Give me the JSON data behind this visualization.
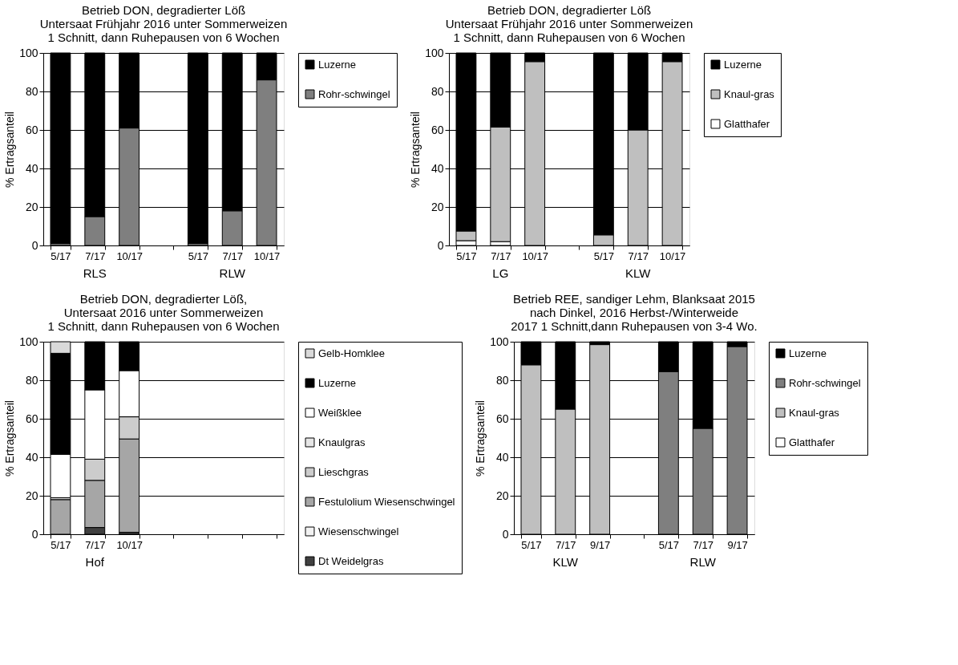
{
  "chart_data": [
    {
      "type": "bar",
      "stacked": true,
      "title": "Betrieb DON, degradierter Löß\nUntersaat Frühjahr 2016 unter Sommerweizen\n1 Schnitt, dann Ruhepausen von 6 Wochen",
      "ylabel": "% Ertragsanteil",
      "categories": [
        "5/17",
        "7/17",
        "10/17",
        null,
        "5/17",
        "7/17",
        "10/17"
      ],
      "ylim": [
        0,
        100
      ],
      "yticks": [
        0,
        20,
        40,
        60,
        80,
        100
      ],
      "grid": "y",
      "legend": "right",
      "annotations": [
        "RLS",
        "RLW"
      ],
      "series": [
        {
          "name": "Rohr-schwingel",
          "color": "#7f7f7f",
          "values": [
            1,
            15,
            61,
            null,
            1,
            18,
            86
          ]
        },
        {
          "name": "Luzerne",
          "color": "#000000",
          "values": [
            99,
            85,
            39,
            null,
            99,
            82,
            14
          ]
        }
      ]
    },
    {
      "type": "bar",
      "stacked": true,
      "title": "Betrieb DON, degradierter Löß\nUntersaat Frühjahr 2016 unter Sommerweizen\n1 Schnitt, dann Ruhepausen von 6 Wochen",
      "ylabel": "% Ertragsanteil",
      "categories": [
        "5/17",
        "7/17",
        "10/17",
        null,
        "5/17",
        "7/17",
        "10/17"
      ],
      "ylim": [
        0,
        100
      ],
      "yticks": [
        0,
        20,
        40,
        60,
        80,
        100
      ],
      "grid": "y",
      "legend": "right",
      "annotations": [
        "LG",
        "KLW"
      ],
      "series": [
        {
          "name": "Glatthafer",
          "color": "#ffffff",
          "values": [
            2.5,
            2,
            0,
            null,
            0,
            0,
            0
          ]
        },
        {
          "name": "Knaul-gras",
          "color": "#bfbfbf",
          "values": [
            5,
            59.5,
            95.5,
            null,
            5.5,
            60,
            95.5
          ]
        },
        {
          "name": "Luzerne",
          "color": "#000000",
          "values": [
            92.5,
            38.5,
            4.5,
            null,
            94.5,
            40,
            4.5
          ]
        }
      ]
    },
    {
      "type": "bar",
      "stacked": true,
      "title": "Betrieb DON, degradierter Löß,\nUntersaat 2016 unter Sommerweizen\n1 Schnitt, dann Ruhepausen von 6 Wochen",
      "ylabel": "% Ertragsanteil",
      "categories": [
        "5/17",
        "7/17",
        "10/17",
        null,
        null,
        null,
        null
      ],
      "ylim": [
        0,
        100
      ],
      "yticks": [
        0,
        20,
        40,
        60,
        80,
        100
      ],
      "grid": "y",
      "legend": "right",
      "annotations": [
        "Hof"
      ],
      "series": [
        {
          "name": "Dt Weidelgras",
          "color": "#404040",
          "values": [
            0,
            3.5,
            1,
            null,
            null,
            null,
            null
          ]
        },
        {
          "name": "Wiesenschwingel",
          "color": "#f2f2f2",
          "values": [
            0,
            0,
            0,
            null,
            null,
            null,
            null
          ]
        },
        {
          "name": "Festulolium Wiesenschwingel",
          "color": "#a6a6a6",
          "values": [
            18,
            24.5,
            48.5,
            null,
            null,
            null,
            null
          ]
        },
        {
          "name": "Lieschgras",
          "color": "#cccccc",
          "values": [
            1,
            11,
            11.5,
            null,
            null,
            null,
            null
          ]
        },
        {
          "name": "Knaulgras",
          "color": "#e6e6e6",
          "values": [
            0,
            0,
            0,
            null,
            null,
            null,
            null
          ]
        },
        {
          "name": "Weißklee",
          "color": "#ffffff",
          "values": [
            22.5,
            36,
            24,
            null,
            null,
            null,
            null
          ]
        },
        {
          "name": "Luzerne",
          "color": "#000000",
          "values": [
            52.5,
            25,
            15,
            null,
            null,
            null,
            null
          ]
        },
        {
          "name": "Gelb-Homklee",
          "color": "#d9d9d9",
          "values": [
            6,
            0,
            0,
            null,
            null,
            null,
            null
          ]
        }
      ]
    },
    {
      "type": "bar",
      "stacked": true,
      "title": "Betrieb REE, sandiger Lehm, Blanksaat 2015\nnach Dinkel, 2016 Herbst-/Winterweide\n2017 1 Schnitt,dann Ruhepausen von 3-4 Wo.",
      "ylabel": "% Ertragsanteil",
      "categories": [
        "5/17",
        "7/17",
        "9/17",
        null,
        "5/17",
        "7/17",
        "9/17"
      ],
      "ylim": [
        0,
        100
      ],
      "yticks": [
        0,
        20,
        40,
        60,
        80,
        100
      ],
      "grid": "y",
      "legend": "right",
      "annotations": [
        "KLW",
        "RLW"
      ],
      "series": [
        {
          "name": "Glatthafer",
          "color": "#ffffff",
          "values": [
            0,
            0,
            0,
            null,
            0,
            0,
            0
          ]
        },
        {
          "name": "Knaul-gras",
          "color": "#bfbfbf",
          "values": [
            88,
            65,
            98.5,
            null,
            0,
            0,
            0
          ]
        },
        {
          "name": "Rohr-schwingel",
          "color": "#7f7f7f",
          "values": [
            0,
            0,
            0,
            null,
            84.5,
            55,
            97.5
          ]
        },
        {
          "name": "Luzerne",
          "color": "#000000",
          "values": [
            12,
            35,
            1.5,
            null,
            15.5,
            45,
            2.5
          ]
        }
      ]
    }
  ]
}
